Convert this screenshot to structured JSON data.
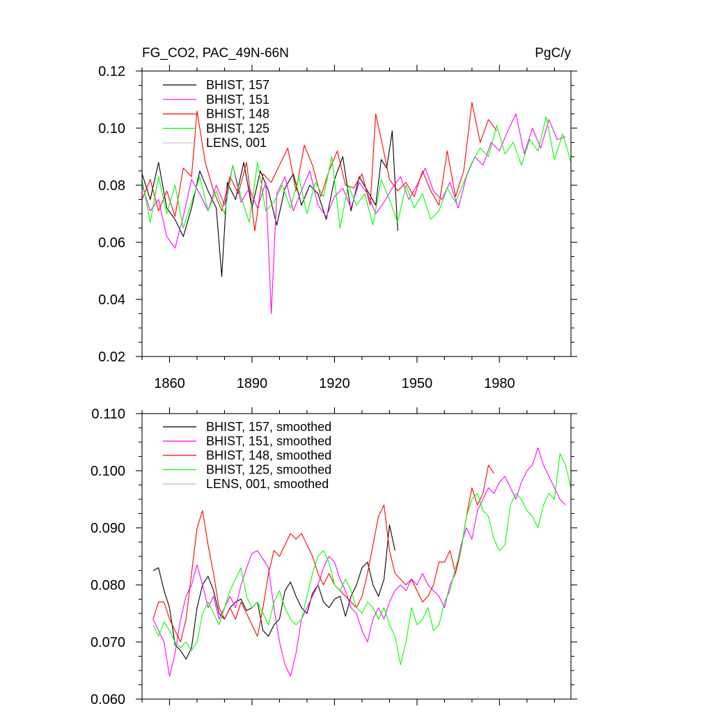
{
  "chart_data": [
    {
      "type": "line",
      "title": "FG_CO2, PAC_49N-66N",
      "units": "PgC/y",
      "xlabel": "",
      "ylabel": "",
      "xlim": [
        1850,
        2006
      ],
      "ylim": [
        0.02,
        0.12
      ],
      "y_ticks": [
        0.02,
        0.04,
        0.06,
        0.08,
        0.1,
        0.12
      ],
      "y_tick_labels": [
        "0.02",
        "0.04",
        "0.06",
        "0.08",
        "0.10",
        "0.12"
      ],
      "x_ticks": [
        1860,
        1890,
        1920,
        1950,
        1980
      ],
      "x_tick_labels": [
        "1860",
        "1890",
        "1920",
        "1950",
        "1980"
      ],
      "legend_position": "top-left",
      "series": [
        {
          "name": "BHIST, 157",
          "color": "#000000",
          "x": [
            1850,
            1853,
            1856,
            1859,
            1862,
            1865,
            1868,
            1871,
            1874,
            1877,
            1879,
            1881,
            1884,
            1887,
            1890,
            1893,
            1896,
            1899,
            1902,
            1905,
            1908,
            1911,
            1914,
            1917,
            1920,
            1923,
            1926,
            1929,
            1932,
            1935,
            1937,
            1939,
            1941,
            1943
          ],
          "y": [
            0.084,
            0.075,
            0.088,
            0.072,
            0.068,
            0.062,
            0.072,
            0.085,
            0.078,
            0.072,
            0.048,
            0.081,
            0.075,
            0.088,
            0.072,
            0.085,
            0.078,
            0.066,
            0.079,
            0.084,
            0.073,
            0.08,
            0.077,
            0.068,
            0.082,
            0.09,
            0.071,
            0.083,
            0.078,
            0.073,
            0.089,
            0.086,
            0.099,
            0.064
          ]
        },
        {
          "name": "BHIST, 151",
          "color": "#ff00ff",
          "x": [
            1850,
            1853,
            1856,
            1859,
            1862,
            1865,
            1868,
            1871,
            1874,
            1877,
            1880,
            1883,
            1886,
            1889,
            1892,
            1895,
            1897,
            1899,
            1902,
            1905,
            1908,
            1911,
            1914,
            1917,
            1920,
            1923,
            1926,
            1929,
            1932,
            1935,
            1938,
            1941,
            1944,
            1947,
            1950,
            1953,
            1956,
            1959,
            1962,
            1965,
            1968,
            1971,
            1974,
            1977,
            1980,
            1983,
            1986,
            1989,
            1992,
            1995,
            1998,
            2001,
            2004
          ],
          "y": [
            0.08,
            0.071,
            0.075,
            0.062,
            0.058,
            0.069,
            0.082,
            0.077,
            0.071,
            0.08,
            0.073,
            0.087,
            0.074,
            0.079,
            0.072,
            0.081,
            0.035,
            0.077,
            0.083,
            0.071,
            0.078,
            0.085,
            0.073,
            0.069,
            0.076,
            0.079,
            0.072,
            0.081,
            0.077,
            0.07,
            0.074,
            0.079,
            0.083,
            0.075,
            0.08,
            0.086,
            0.078,
            0.075,
            0.081,
            0.072,
            0.083,
            0.09,
            0.087,
            0.095,
            0.092,
            0.099,
            0.105,
            0.091,
            0.1,
            0.093,
            0.103,
            0.096,
            0.097
          ]
        },
        {
          "name": "BHIST, 148",
          "color": "#ff0000",
          "x": [
            1850,
            1853,
            1856,
            1859,
            1862,
            1865,
            1868,
            1870,
            1873,
            1876,
            1879,
            1882,
            1885,
            1888,
            1891,
            1894,
            1897,
            1900,
            1903,
            1906,
            1909,
            1912,
            1915,
            1918,
            1921,
            1924,
            1927,
            1930,
            1933,
            1935,
            1937,
            1940,
            1943,
            1946,
            1949,
            1952,
            1955,
            1958,
            1961,
            1964,
            1967,
            1970,
            1973,
            1976,
            1979
          ],
          "y": [
            0.075,
            0.082,
            0.071,
            0.078,
            0.069,
            0.086,
            0.083,
            0.106,
            0.088,
            0.078,
            0.071,
            0.083,
            0.077,
            0.088,
            0.064,
            0.084,
            0.081,
            0.087,
            0.093,
            0.078,
            0.094,
            0.087,
            0.076,
            0.085,
            0.092,
            0.08,
            0.079,
            0.084,
            0.073,
            0.105,
            0.096,
            0.082,
            0.078,
            0.081,
            0.076,
            0.085,
            0.078,
            0.073,
            0.092,
            0.076,
            0.085,
            0.109,
            0.095,
            0.103,
            0.099
          ]
        },
        {
          "name": "BHIST, 125",
          "color": "#00ff00",
          "x": [
            1850,
            1853,
            1856,
            1859,
            1862,
            1865,
            1868,
            1871,
            1874,
            1877,
            1880,
            1883,
            1886,
            1889,
            1892,
            1895,
            1898,
            1901,
            1904,
            1907,
            1910,
            1913,
            1916,
            1919,
            1922,
            1925,
            1928,
            1931,
            1934,
            1937,
            1940,
            1943,
            1946,
            1949,
            1952,
            1955,
            1958,
            1961,
            1964,
            1967,
            1970,
            1973,
            1976,
            1979,
            1982,
            1985,
            1988,
            1991,
            1994,
            1997,
            2000,
            2003,
            2006
          ],
          "y": [
            0.082,
            0.067,
            0.083,
            0.07,
            0.08,
            0.065,
            0.074,
            0.083,
            0.071,
            0.078,
            0.07,
            0.087,
            0.076,
            0.067,
            0.088,
            0.071,
            0.074,
            0.08,
            0.072,
            0.083,
            0.07,
            0.081,
            0.076,
            0.09,
            0.065,
            0.08,
            0.073,
            0.077,
            0.066,
            0.082,
            0.075,
            0.067,
            0.08,
            0.072,
            0.077,
            0.068,
            0.071,
            0.079,
            0.074,
            0.081,
            0.088,
            0.093,
            0.09,
            0.101,
            0.091,
            0.095,
            0.087,
            0.096,
            0.092,
            0.104,
            0.089,
            0.098,
            0.088
          ]
        },
        {
          "name": "LENS, 001",
          "color": "#bbbbbb",
          "x": [],
          "y": []
        }
      ]
    },
    {
      "type": "line",
      "title": "",
      "xlabel": "",
      "ylabel": "",
      "xlim": [
        1850,
        2006
      ],
      "ylim": [
        0.06,
        0.11
      ],
      "y_ticks": [
        0.06,
        0.07,
        0.08,
        0.09,
        0.1,
        0.11
      ],
      "y_tick_labels": [
        "0.060",
        "0.070",
        "0.080",
        "0.090",
        "0.100",
        "0.110"
      ],
      "x_ticks": [
        1860,
        1890,
        1920,
        1950,
        1980
      ],
      "x_tick_labels": [
        "",
        "",
        "",
        "",
        ""
      ],
      "legend_position": "top-left",
      "series": [
        {
          "name": "BHIST, 157, smoothed",
          "color": "#000000",
          "x": [
            1854,
            1856,
            1858,
            1860,
            1862,
            1864,
            1866,
            1868,
            1870,
            1872,
            1874,
            1876,
            1878,
            1880,
            1882,
            1884,
            1886,
            1888,
            1890,
            1892,
            1894,
            1896,
            1898,
            1900,
            1902,
            1904,
            1906,
            1908,
            1910,
            1912,
            1914,
            1916,
            1918,
            1920,
            1922,
            1924,
            1926,
            1928,
            1930,
            1932,
            1934,
            1936,
            1938,
            1940,
            1942
          ],
          "y": [
            0.0825,
            0.083,
            0.079,
            0.076,
            0.0695,
            0.0685,
            0.067,
            0.069,
            0.076,
            0.08,
            0.0815,
            0.079,
            0.075,
            0.074,
            0.076,
            0.077,
            0.0775,
            0.0755,
            0.076,
            0.077,
            0.072,
            0.071,
            0.073,
            0.074,
            0.079,
            0.0805,
            0.078,
            0.076,
            0.075,
            0.0785,
            0.08,
            0.077,
            0.076,
            0.0775,
            0.078,
            0.0745,
            0.078,
            0.08,
            0.083,
            0.084,
            0.08,
            0.078,
            0.081,
            0.0905,
            0.086
          ]
        },
        {
          "name": "BHIST, 151, smoothed",
          "color": "#ff00ff",
          "x": [
            1854,
            1856,
            1858,
            1860,
            1862,
            1864,
            1866,
            1868,
            1870,
            1872,
            1874,
            1876,
            1878,
            1880,
            1882,
            1884,
            1886,
            1888,
            1890,
            1892,
            1894,
            1896,
            1898,
            1900,
            1902,
            1904,
            1906,
            1908,
            1910,
            1912,
            1914,
            1916,
            1918,
            1920,
            1922,
            1924,
            1926,
            1928,
            1930,
            1932,
            1934,
            1936,
            1938,
            1940,
            1942,
            1944,
            1946,
            1948,
            1950,
            1952,
            1954,
            1956,
            1958,
            1960,
            1962,
            1964,
            1966,
            1968,
            1970,
            1972,
            1974,
            1976,
            1978,
            1980,
            1982,
            1984,
            1986,
            1988,
            1990,
            1992,
            1994,
            1996,
            1998,
            2000,
            2002,
            2004
          ],
          "y": [
            0.074,
            0.072,
            0.07,
            0.064,
            0.068,
            0.074,
            0.078,
            0.08,
            0.0835,
            0.08,
            0.076,
            0.078,
            0.074,
            0.076,
            0.078,
            0.076,
            0.08,
            0.083,
            0.0855,
            0.086,
            0.0845,
            0.083,
            0.076,
            0.07,
            0.066,
            0.064,
            0.068,
            0.074,
            0.076,
            0.078,
            0.08,
            0.083,
            0.085,
            0.084,
            0.081,
            0.079,
            0.076,
            0.075,
            0.072,
            0.07,
            0.074,
            0.076,
            0.074,
            0.077,
            0.079,
            0.08,
            0.079,
            0.081,
            0.08,
            0.082,
            0.08,
            0.079,
            0.078,
            0.076,
            0.08,
            0.082,
            0.087,
            0.09,
            0.088,
            0.093,
            0.095,
            0.097,
            0.096,
            0.098,
            0.099,
            0.097,
            0.095,
            0.098,
            0.1,
            0.101,
            0.104,
            0.101,
            0.099,
            0.097,
            0.095,
            0.094
          ]
        },
        {
          "name": "BHIST, 148, smoothed",
          "color": "#ff0000",
          "x": [
            1854,
            1856,
            1858,
            1860,
            1862,
            1864,
            1866,
            1868,
            1870,
            1872,
            1874,
            1876,
            1878,
            1880,
            1882,
            1884,
            1886,
            1888,
            1890,
            1892,
            1894,
            1896,
            1898,
            1900,
            1902,
            1904,
            1906,
            1908,
            1910,
            1912,
            1914,
            1916,
            1918,
            1920,
            1922,
            1924,
            1926,
            1928,
            1930,
            1932,
            1934,
            1936,
            1938,
            1940,
            1942,
            1944,
            1946,
            1948,
            1950,
            1952,
            1954,
            1956,
            1958,
            1960,
            1962,
            1964,
            1966,
            1968,
            1970,
            1972,
            1974,
            1976,
            1978
          ],
          "y": [
            0.074,
            0.077,
            0.077,
            0.074,
            0.072,
            0.07,
            0.074,
            0.082,
            0.09,
            0.093,
            0.087,
            0.082,
            0.076,
            0.074,
            0.076,
            0.074,
            0.077,
            0.075,
            0.073,
            0.071,
            0.076,
            0.082,
            0.086,
            0.085,
            0.087,
            0.089,
            0.088,
            0.089,
            0.087,
            0.085,
            0.082,
            0.08,
            0.082,
            0.08,
            0.079,
            0.078,
            0.077,
            0.076,
            0.078,
            0.082,
            0.087,
            0.092,
            0.094,
            0.086,
            0.082,
            0.081,
            0.08,
            0.081,
            0.079,
            0.077,
            0.078,
            0.08,
            0.084,
            0.084,
            0.086,
            0.082,
            0.086,
            0.092,
            0.097,
            0.094,
            0.096,
            0.101,
            0.0995
          ]
        },
        {
          "name": "BHIST, 125, smoothed",
          "color": "#00ff00",
          "x": [
            1854,
            1856,
            1858,
            1860,
            1862,
            1864,
            1866,
            1868,
            1870,
            1872,
            1874,
            1876,
            1878,
            1880,
            1882,
            1884,
            1886,
            1888,
            1890,
            1892,
            1894,
            1896,
            1898,
            1900,
            1902,
            1904,
            1906,
            1908,
            1910,
            1912,
            1914,
            1916,
            1918,
            1920,
            1922,
            1924,
            1926,
            1928,
            1930,
            1932,
            1934,
            1936,
            1938,
            1940,
            1942,
            1944,
            1946,
            1948,
            1950,
            1952,
            1954,
            1956,
            1958,
            1960,
            1962,
            1964,
            1966,
            1968,
            1970,
            1972,
            1974,
            1976,
            1978,
            1980,
            1982,
            1984,
            1986,
            1988,
            1990,
            1992,
            1994,
            1996,
            1998,
            2000,
            2002,
            2004,
            2006
          ],
          "y": [
            0.073,
            0.071,
            0.0735,
            0.072,
            0.07,
            0.069,
            0.07,
            0.0685,
            0.07,
            0.075,
            0.077,
            0.075,
            0.073,
            0.076,
            0.079,
            0.081,
            0.083,
            0.078,
            0.076,
            0.077,
            0.075,
            0.073,
            0.077,
            0.079,
            0.076,
            0.074,
            0.073,
            0.074,
            0.078,
            0.082,
            0.085,
            0.086,
            0.084,
            0.08,
            0.079,
            0.081,
            0.079,
            0.076,
            0.075,
            0.077,
            0.076,
            0.074,
            0.076,
            0.073,
            0.071,
            0.066,
            0.07,
            0.076,
            0.073,
            0.074,
            0.076,
            0.072,
            0.073,
            0.077,
            0.079,
            0.083,
            0.086,
            0.092,
            0.095,
            0.096,
            0.093,
            0.092,
            0.088,
            0.086,
            0.087,
            0.094,
            0.096,
            0.095,
            0.093,
            0.092,
            0.09,
            0.094,
            0.096,
            0.095,
            0.103,
            0.101,
            0.097
          ]
        },
        {
          "name": "LENS, 001, smoothed",
          "color": "#bbbbbb",
          "x": [],
          "y": []
        }
      ]
    }
  ]
}
